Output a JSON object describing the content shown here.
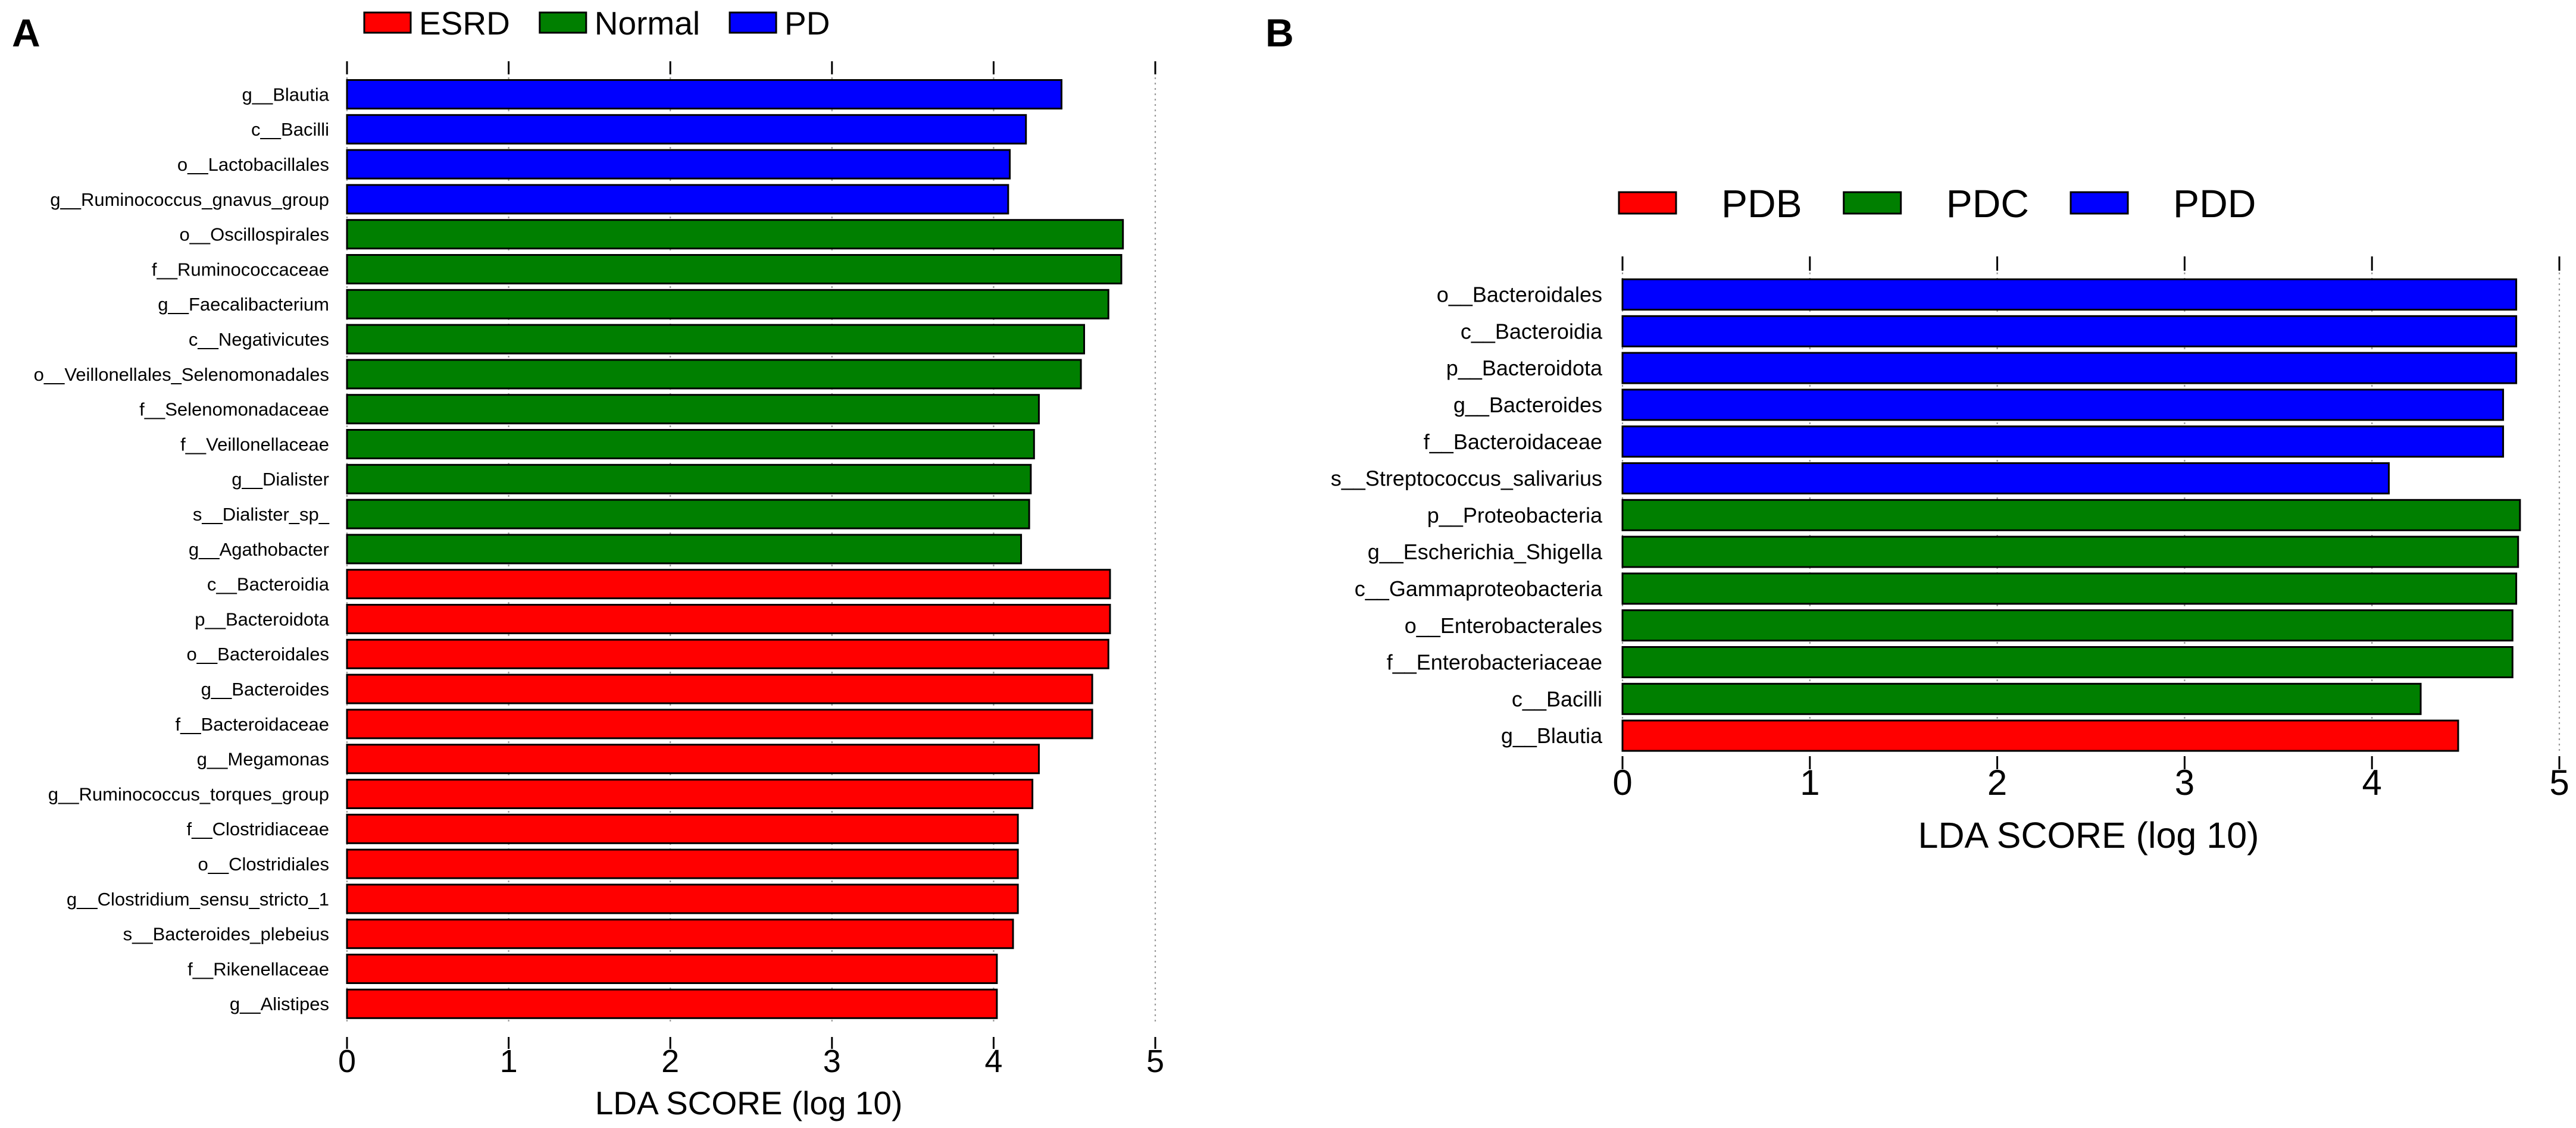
{
  "colors": {
    "ESRD": "#ff0000",
    "Normal": "#007f00",
    "PD": "#0000ff",
    "PDB": "#ff0000",
    "PDC": "#007f00",
    "PDD": "#0000ff"
  },
  "chart_data": [
    {
      "panel_label": "A",
      "type": "bar",
      "orientation": "horizontal",
      "legend": [
        "ESRD",
        "Normal",
        "PD"
      ],
      "legend_position": "top",
      "xlabel": "LDA SCORE (log 10)",
      "xlim": [
        0,
        5
      ],
      "xticks": [
        "0",
        "1",
        "2",
        "3",
        "4",
        "5"
      ],
      "grid": true,
      "bars": [
        {
          "label": "g__Blautia",
          "value": 4.42,
          "group": "PD"
        },
        {
          "label": "c__Bacilli",
          "value": 4.2,
          "group": "PD"
        },
        {
          "label": "o__Lactobacillales",
          "value": 4.1,
          "group": "PD"
        },
        {
          "label": "g__Ruminococcus_gnavus_group",
          "value": 4.09,
          "group": "PD"
        },
        {
          "label": "o__Oscillospirales",
          "value": 4.8,
          "group": "Normal"
        },
        {
          "label": "f__Ruminococcaceae",
          "value": 4.79,
          "group": "Normal"
        },
        {
          "label": "g__Faecalibacterium",
          "value": 4.71,
          "group": "Normal"
        },
        {
          "label": "c__Negativicutes",
          "value": 4.56,
          "group": "Normal"
        },
        {
          "label": "o__Veillonellales_Selenomonadales",
          "value": 4.54,
          "group": "Normal"
        },
        {
          "label": "f__Selenomonadaceae",
          "value": 4.28,
          "group": "Normal"
        },
        {
          "label": "f__Veillonellaceae",
          "value": 4.25,
          "group": "Normal"
        },
        {
          "label": "g__Dialister",
          "value": 4.23,
          "group": "Normal"
        },
        {
          "label": "s__Dialister_sp_",
          "value": 4.22,
          "group": "Normal"
        },
        {
          "label": "g__Agathobacter",
          "value": 4.17,
          "group": "Normal"
        },
        {
          "label": "c__Bacteroidia",
          "value": 4.72,
          "group": "ESRD"
        },
        {
          "label": "p__Bacteroidota",
          "value": 4.72,
          "group": "ESRD"
        },
        {
          "label": "o__Bacteroidales",
          "value": 4.71,
          "group": "ESRD"
        },
        {
          "label": "g__Bacteroides",
          "value": 4.61,
          "group": "ESRD"
        },
        {
          "label": "f__Bacteroidaceae",
          "value": 4.61,
          "group": "ESRD"
        },
        {
          "label": "g__Megamonas",
          "value": 4.28,
          "group": "ESRD"
        },
        {
          "label": "g__Ruminococcus_torques_group",
          "value": 4.24,
          "group": "ESRD"
        },
        {
          "label": "f__Clostridiaceae",
          "value": 4.15,
          "group": "ESRD"
        },
        {
          "label": "o__Clostridiales",
          "value": 4.15,
          "group": "ESRD"
        },
        {
          "label": "g__Clostridium_sensu_stricto_1",
          "value": 4.15,
          "group": "ESRD"
        },
        {
          "label": "s__Bacteroides_plebeius",
          "value": 4.12,
          "group": "ESRD"
        },
        {
          "label": "f__Rikenellaceae",
          "value": 4.02,
          "group": "ESRD"
        },
        {
          "label": "g__Alistipes",
          "value": 4.02,
          "group": "ESRD"
        }
      ]
    },
    {
      "panel_label": "B",
      "type": "bar",
      "orientation": "horizontal",
      "legend": [
        "PDB",
        "PDC",
        "PDD"
      ],
      "legend_position": "top",
      "xlabel": "LDA SCORE (log 10)",
      "xlim": [
        0,
        5
      ],
      "xticks": [
        "0",
        "1",
        "2",
        "3",
        "4",
        "5"
      ],
      "grid": true,
      "bars": [
        {
          "label": "o__Bacteroidales",
          "value": 4.77,
          "group": "PDD"
        },
        {
          "label": "c__Bacteroidia",
          "value": 4.77,
          "group": "PDD"
        },
        {
          "label": "p__Bacteroidota",
          "value": 4.77,
          "group": "PDD"
        },
        {
          "label": "g__Bacteroides",
          "value": 4.7,
          "group": "PDD"
        },
        {
          "label": "f__Bacteroidaceae",
          "value": 4.7,
          "group": "PDD"
        },
        {
          "label": "s__Streptococcus_salivarius",
          "value": 4.09,
          "group": "PDD"
        },
        {
          "label": "p__Proteobacteria",
          "value": 4.79,
          "group": "PDC"
        },
        {
          "label": "g__Escherichia_Shigella",
          "value": 4.78,
          "group": "PDC"
        },
        {
          "label": "c__Gammaproteobacteria",
          "value": 4.77,
          "group": "PDC"
        },
        {
          "label": "o__Enterobacterales",
          "value": 4.75,
          "group": "PDC"
        },
        {
          "label": "f__Enterobacteriaceae",
          "value": 4.75,
          "group": "PDC"
        },
        {
          "label": "c__Bacilli",
          "value": 4.26,
          "group": "PDC"
        },
        {
          "label": "g__Blautia",
          "value": 4.46,
          "group": "PDB"
        }
      ]
    }
  ]
}
